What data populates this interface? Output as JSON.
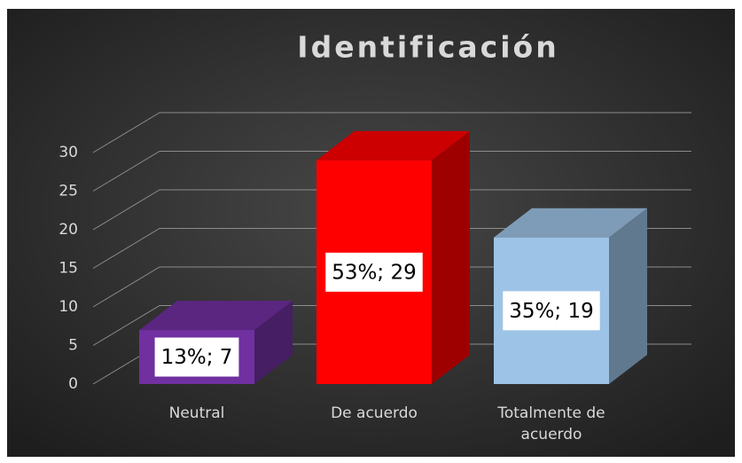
{
  "chart_data": {
    "type": "bar3d",
    "title": "Identificación",
    "categories": [
      "Neutral",
      "De acuerdo",
      "Totalmente de acuerdo"
    ],
    "values": [
      7,
      29,
      19
    ],
    "value_labels": [
      "13%; 7",
      "53%; 29",
      "35%; 19"
    ],
    "colors": [
      "#7030a0",
      "#ff0000",
      "#9dc3e6"
    ],
    "ylim": [
      0,
      30
    ],
    "yticks": [
      0,
      5,
      10,
      15,
      20,
      25,
      30
    ],
    "grid": true
  }
}
